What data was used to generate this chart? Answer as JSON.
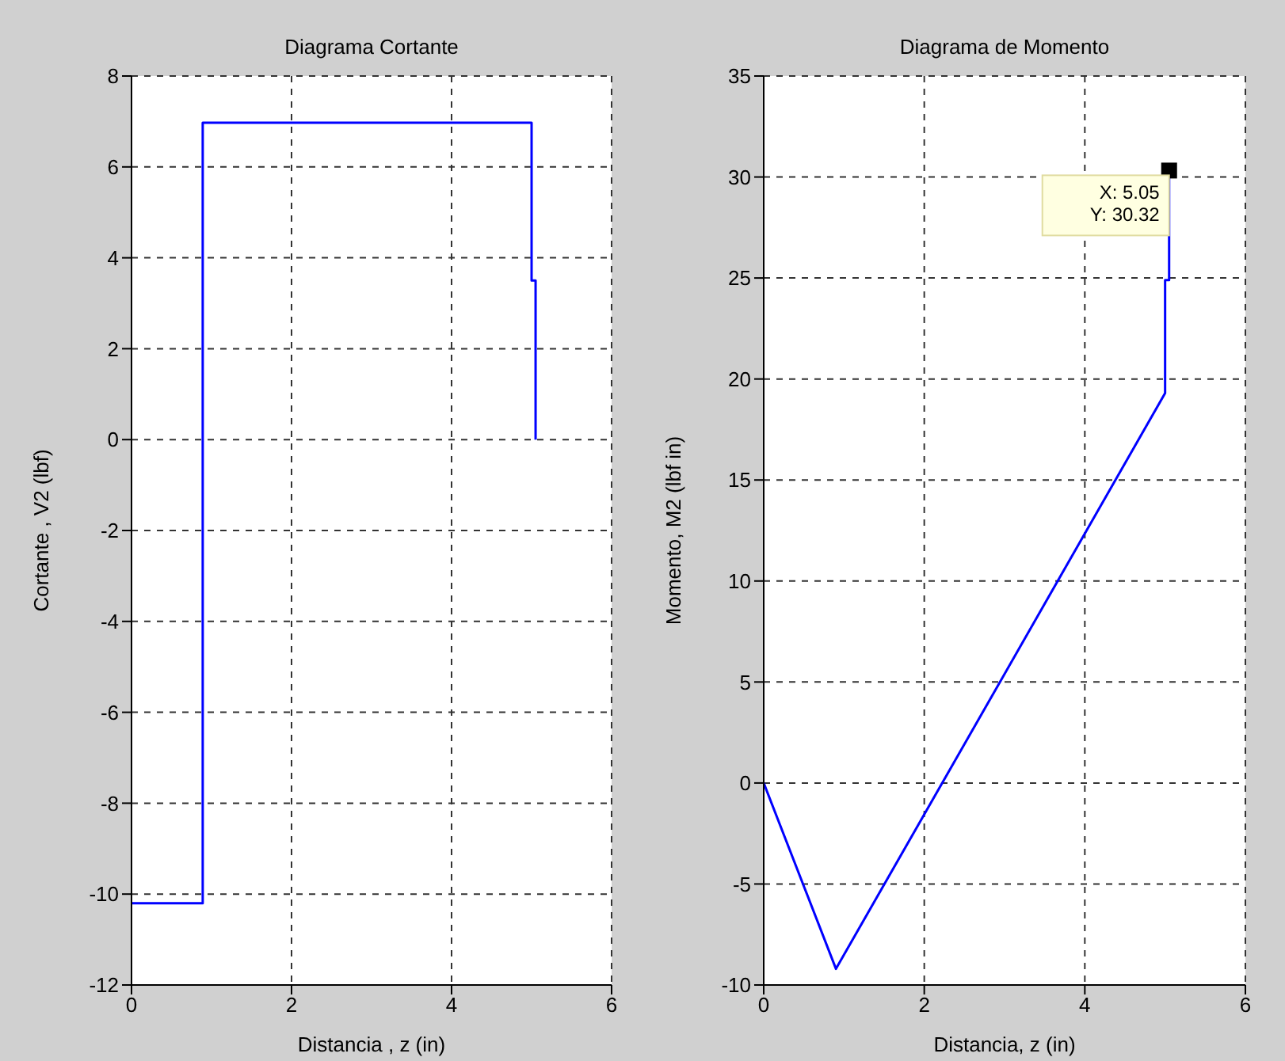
{
  "chart_data": [
    {
      "type": "line",
      "title": "Diagrama Cortante",
      "xlabel": "Distancia , z (in)",
      "ylabel": "Cortante , V2 (lbf)",
      "xlim": [
        0,
        6
      ],
      "xticks": [
        0,
        2,
        4,
        6
      ],
      "ylim": [
        -12,
        8
      ],
      "yticks": [
        -12,
        -10,
        -8,
        -6,
        -4,
        -2,
        0,
        2,
        4,
        6,
        8
      ],
      "grid": true,
      "legend": false,
      "series": [
        {
          "color": "#0000ff",
          "x": [
            0,
            0.89,
            0.89,
            5.0,
            5.0,
            5.05,
            5.05
          ],
          "values": [
            -10.2,
            -10.2,
            6.97,
            6.97,
            3.5,
            3.5,
            0
          ]
        }
      ]
    },
    {
      "type": "line",
      "title": "Diagrama de Momento",
      "xlabel": "Distancia, z (in)",
      "ylabel": "Momento, M2 (lbf in)",
      "xlim": [
        0,
        6
      ],
      "xticks": [
        0,
        2,
        4,
        6
      ],
      "ylim": [
        -10,
        35
      ],
      "yticks": [
        -10,
        -5,
        0,
        5,
        10,
        15,
        20,
        25,
        30,
        35
      ],
      "grid": true,
      "legend": false,
      "series": [
        {
          "color": "#0000ff",
          "x": [
            0,
            0.9,
            5.0,
            5.0,
            5.05,
            5.05
          ],
          "values": [
            0,
            -9.2,
            19.3,
            24.9,
            24.9,
            30.32
          ]
        }
      ],
      "annotations": [
        {
          "text": "X: 5.05\nY: 30.32",
          "x": 5.05,
          "y": 30.32
        }
      ]
    }
  ]
}
